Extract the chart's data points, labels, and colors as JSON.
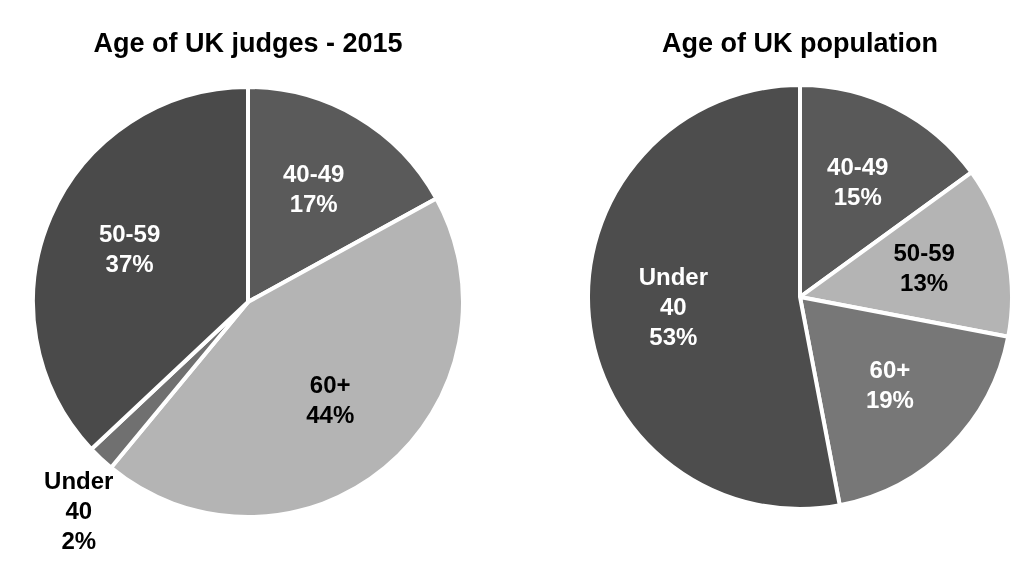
{
  "chart_data": [
    {
      "type": "pie",
      "title": "Age of UK judges - 2015",
      "categories": [
        "40-49",
        "60+",
        "Under 40",
        "50-59"
      ],
      "values": [
        17,
        44,
        2,
        37
      ],
      "colors": [
        "#5a5a5a",
        "#b4b4b4",
        "#707070",
        "#4a4a4a"
      ],
      "value_labels": [
        "17%",
        "44%",
        "2%",
        "37%"
      ]
    },
    {
      "type": "pie",
      "title": "Age of UK population",
      "categories": [
        "40-49",
        "50-59",
        "60+",
        "Under 40"
      ],
      "values": [
        15,
        13,
        19,
        53
      ],
      "colors": [
        "#595959",
        "#b4b4b4",
        "#777777",
        "#4d4d4d"
      ],
      "value_labels": [
        "15%",
        "13%",
        "19%",
        "53%"
      ]
    }
  ]
}
